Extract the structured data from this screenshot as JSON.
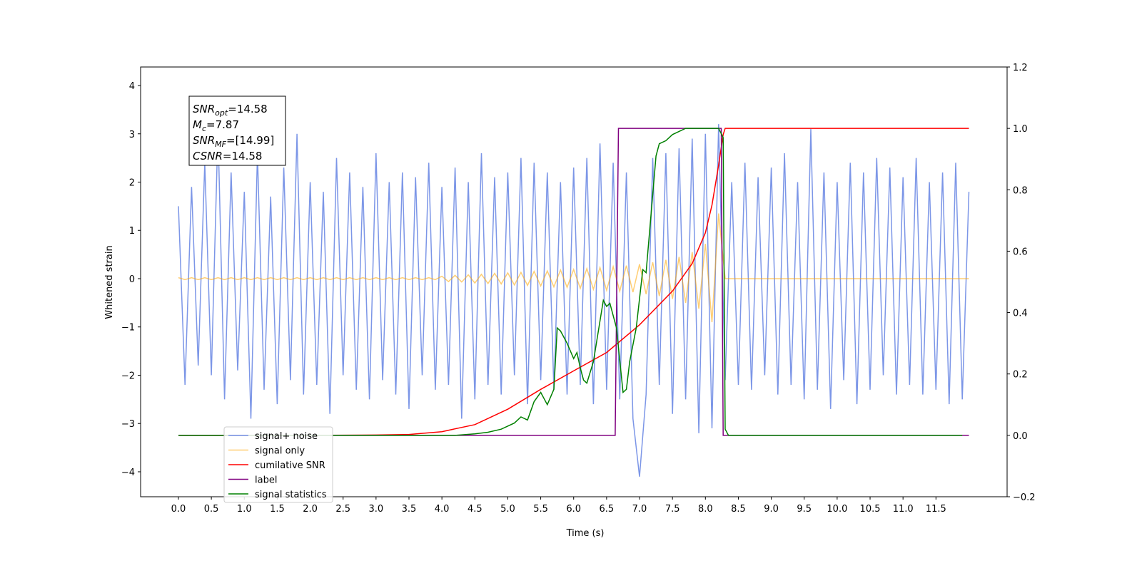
{
  "chart_data": {
    "type": "line",
    "xlabel": "Time (s)",
    "ylabel": "Whitened strain",
    "xlim": [
      -0.574,
      12.58
    ],
    "ylim": [
      -4.517,
      4.384
    ],
    "y2lim": [
      -0.2,
      1.2
    ],
    "xticks": [
      {
        "value": 0,
        "label": "0.0"
      },
      0.5,
      {
        "value": 1,
        "label": "1.0"
      },
      1.5,
      {
        "value": 2,
        "label": "2.0"
      },
      2.5,
      {
        "value": 3,
        "label": "3.0"
      },
      3.5,
      {
        "value": 4,
        "label": "4.0"
      },
      4.5,
      {
        "value": 5,
        "label": "5.0"
      },
      5.5,
      {
        "value": 6,
        "label": "6.0"
      },
      6.5,
      {
        "value": 7,
        "label": "7.0"
      },
      7.5,
      {
        "value": 8,
        "label": "8.0"
      },
      8.5,
      {
        "value": 9,
        "label": "9.0"
      },
      9.5,
      {
        "value": 10,
        "label": "10.0"
      },
      10.5,
      {
        "value": 11,
        "label": "11.0"
      },
      11.5
    ],
    "yticks": [
      {
        "value": -4,
        "label": "−4"
      },
      {
        "value": -3,
        "label": "−3"
      },
      {
        "value": -2,
        "label": "−2"
      },
      {
        "value": -1,
        "label": "−1"
      },
      0,
      1,
      2,
      3,
      4
    ],
    "y2ticks": [
      {
        "value": -0.2,
        "label": "−0.2"
      },
      {
        "value": 0,
        "label": "0.0"
      },
      0.2,
      0.4,
      0.6,
      0.8,
      {
        "value": 1,
        "label": "1.0"
      },
      1.2
    ],
    "annotations": [
      {
        "symbol": "SNR",
        "subscript": "opt",
        "text": "=14.58"
      },
      {
        "symbol": "M",
        "subscript": "c",
        "text": "=7.87"
      },
      {
        "symbol": "SNR",
        "subscript": "MF",
        "text": "=[14.99]"
      },
      {
        "symbol": "CSNR",
        "text": "=14.58"
      }
    ],
    "series": [
      {
        "name": "signal+ noise",
        "color": "#7590e6",
        "axis": "y",
        "x": [
          0,
          0.1,
          0.2,
          0.3,
          0.4,
          0.5,
          0.6,
          0.7,
          0.8,
          0.9,
          1,
          1.1,
          1.2,
          1.3,
          1.4,
          1.5,
          1.6,
          1.7,
          1.8,
          1.9,
          2,
          2.1,
          2.2,
          2.3,
          2.4,
          2.5,
          2.6,
          2.7,
          2.8,
          2.9,
          3,
          3.1,
          3.2,
          3.3,
          3.4,
          3.5,
          3.6,
          3.7,
          3.8,
          3.9,
          4,
          4.1,
          4.2,
          4.3,
          4.4,
          4.5,
          4.6,
          4.7,
          4.8,
          4.9,
          5,
          5.1,
          5.2,
          5.3,
          5.4,
          5.5,
          5.6,
          5.7,
          5.8,
          5.9,
          6,
          6.1,
          6.2,
          6.3,
          6.4,
          6.5,
          6.6,
          6.7,
          6.8,
          6.9,
          7,
          7.1,
          7.2,
          7.3,
          7.4,
          7.5,
          7.6,
          7.7,
          7.8,
          7.9,
          8,
          8.1,
          8.2,
          8.3,
          8.4,
          8.5,
          8.6,
          8.7,
          8.8,
          8.9,
          9,
          9.1,
          9.2,
          9.3,
          9.4,
          9.5,
          9.6,
          9.7,
          9.8,
          9.9,
          10,
          10.1,
          10.2,
          10.3,
          10.4,
          10.5,
          10.6,
          10.7,
          10.8,
          10.9,
          11,
          11.1,
          11.2,
          11.3,
          11.4,
          11.5,
          11.6,
          11.7,
          11.8,
          11.9,
          12
        ],
        "values": [
          1.5,
          -2.2,
          1.9,
          -1.8,
          2.4,
          -2.0,
          3.1,
          -2.5,
          2.2,
          -1.9,
          1.8,
          -2.9,
          2.6,
          -2.3,
          1.7,
          -2.6,
          2.3,
          -2.1,
          3.0,
          -2.4,
          2.0,
          -2.2,
          1.8,
          -2.8,
          2.5,
          -2.0,
          2.2,
          -2.3,
          1.9,
          -2.5,
          2.6,
          -2.1,
          2.0,
          -2.4,
          2.2,
          -2.7,
          2.1,
          -2.0,
          2.4,
          -2.3,
          1.9,
          -2.2,
          2.3,
          -2.9,
          2.0,
          -2.5,
          2.6,
          -2.2,
          2.1,
          -2.4,
          2.2,
          -2.0,
          2.5,
          -2.6,
          2.4,
          -2.1,
          2.2,
          -2.3,
          2.0,
          -2.4,
          2.3,
          -2.2,
          2.5,
          -2.6,
          2.8,
          -2.3,
          2.4,
          -2.5,
          2.2,
          -2.9,
          -4.1,
          -2.4,
          2.5,
          -2.2,
          2.6,
          -2.8,
          2.7,
          -2.5,
          2.9,
          -3.2,
          3.0,
          -3.1,
          3.2,
          -2.1,
          2.0,
          -2.2,
          2.4,
          -2.3,
          2.1,
          -2.0,
          2.3,
          -2.4,
          2.6,
          -2.2,
          2.0,
          -2.5,
          3.1,
          -2.3,
          2.2,
          -2.7,
          2.0,
          -2.1,
          2.4,
          -2.6,
          2.2,
          -2.3,
          2.5,
          -2.0,
          2.3,
          -2.4,
          2.1,
          -2.2,
          2.5,
          -2.4,
          2.0,
          -2.3,
          2.2,
          -2.6,
          2.4,
          -2.5,
          1.8
        ]
      },
      {
        "name": "signal only",
        "color": "#ffa500",
        "axis": "y",
        "x": [
          0,
          0.1,
          0.2,
          0.3,
          0.4,
          0.5,
          0.6,
          0.7,
          0.8,
          0.9,
          1,
          1.1,
          1.2,
          1.3,
          1.4,
          1.5,
          1.6,
          1.7,
          1.8,
          1.9,
          2,
          2.1,
          2.2,
          2.3,
          2.4,
          2.5,
          2.6,
          2.7,
          2.8,
          2.9,
          3,
          3.1,
          3.2,
          3.3,
          3.4,
          3.5,
          3.6,
          3.7,
          3.8,
          3.9,
          4,
          4.1,
          4.2,
          4.3,
          4.4,
          4.5,
          4.6,
          4.7,
          4.8,
          4.9,
          5,
          5.1,
          5.2,
          5.3,
          5.4,
          5.5,
          5.6,
          5.7,
          5.8,
          5.9,
          6,
          6.1,
          6.2,
          6.3,
          6.4,
          6.5,
          6.6,
          6.7,
          6.8,
          6.9,
          7,
          7.1,
          7.2,
          7.3,
          7.4,
          7.5,
          7.6,
          7.7,
          7.8,
          7.9,
          8,
          8.1,
          8.2,
          8.3,
          8.4,
          8.5,
          8.6,
          8.7,
          8.8,
          8.9,
          9,
          9.1,
          9.2,
          9.3,
          9.4,
          9.5,
          9.6,
          9.7,
          9.8,
          9.9,
          10,
          10.1,
          10.2,
          10.3,
          10.4,
          10.5,
          10.6,
          10.7,
          10.8,
          10.9,
          11,
          11.1,
          11.2,
          11.3,
          11.4,
          11.5,
          11.6,
          11.7,
          11.8,
          11.9,
          12
        ],
        "values": [
          0.02,
          -0.02,
          0.02,
          -0.02,
          0.02,
          -0.02,
          0.02,
          -0.02,
          0.02,
          -0.02,
          0.02,
          -0.02,
          0.02,
          -0.02,
          0.02,
          -0.02,
          0.02,
          -0.02,
          0.02,
          -0.02,
          0.02,
          -0.02,
          0.02,
          -0.02,
          0.02,
          -0.02,
          0.02,
          -0.02,
          0.02,
          -0.02,
          0.02,
          -0.02,
          0.02,
          -0.02,
          0.02,
          -0.02,
          0.02,
          -0.02,
          0.02,
          -0.02,
          0.05,
          -0.06,
          0.07,
          -0.07,
          0.08,
          -0.09,
          0.09,
          -0.1,
          0.11,
          -0.11,
          0.12,
          -0.13,
          0.13,
          -0.14,
          0.15,
          -0.15,
          0.16,
          -0.17,
          0.18,
          -0.18,
          0.19,
          -0.2,
          0.21,
          -0.22,
          0.23,
          -0.24,
          0.25,
          -0.26,
          0.27,
          -0.28,
          0.3,
          -0.32,
          0.34,
          -0.36,
          0.39,
          -0.42,
          0.45,
          -0.5,
          0.55,
          -0.62,
          0.72,
          -0.9,
          1.35,
          0,
          0,
          0,
          0,
          0,
          0,
          0,
          0,
          0,
          0,
          0,
          0,
          0,
          0,
          0,
          0,
          0,
          0,
          0,
          0,
          0,
          0,
          0,
          0,
          0,
          0,
          0,
          0,
          0,
          0,
          0,
          0,
          0,
          0,
          0,
          0,
          0,
          0
        ]
      },
      {
        "name": "cumilative SNR",
        "color": "#ff0000",
        "axis": "y2",
        "x": [
          0,
          1,
          2,
          3,
          3.5,
          4,
          4.5,
          5,
          5.5,
          6,
          6.5,
          7,
          7.5,
          7.8,
          8,
          8.1,
          8.2,
          8.27,
          8.3,
          12
        ],
        "values": [
          0,
          0,
          0,
          0.001,
          0.003,
          0.012,
          0.035,
          0.085,
          0.15,
          0.21,
          0.27,
          0.36,
          0.47,
          0.56,
          0.66,
          0.75,
          0.88,
          0.98,
          1.0,
          1.0
        ]
      },
      {
        "name": "label",
        "color": "#800080",
        "axis": "y2",
        "x": [
          0,
          6.63,
          6.68,
          8.24,
          8.27,
          12
        ],
        "values": [
          0,
          0,
          1,
          1,
          0,
          0
        ]
      },
      {
        "name": "signal statistics",
        "color": "#008000",
        "axis": "y2",
        "x": [
          0,
          4.2,
          4.5,
          4.7,
          4.9,
          5.1,
          5.2,
          5.3,
          5.4,
          5.5,
          5.55,
          5.6,
          5.7,
          5.75,
          5.8,
          5.9,
          6,
          6.05,
          6.1,
          6.15,
          6.2,
          6.3,
          6.45,
          6.5,
          6.55,
          6.65,
          6.75,
          6.8,
          6.85,
          6.95,
          7.05,
          7.1,
          7.25,
          7.3,
          7.4,
          7.5,
          7.7,
          8.2,
          8.27,
          8.3,
          8.35,
          11.9
        ],
        "values": [
          0,
          0,
          0.005,
          0.01,
          0.02,
          0.04,
          0.06,
          0.05,
          0.11,
          0.14,
          0.12,
          0.1,
          0.15,
          0.35,
          0.34,
          0.3,
          0.25,
          0.27,
          0.22,
          0.18,
          0.17,
          0.24,
          0.44,
          0.42,
          0.43,
          0.35,
          0.14,
          0.15,
          0.24,
          0.35,
          0.54,
          0.53,
          0.91,
          0.95,
          0.96,
          0.98,
          1.0,
          1.0,
          0.97,
          0.02,
          0,
          0
        ]
      }
    ]
  }
}
